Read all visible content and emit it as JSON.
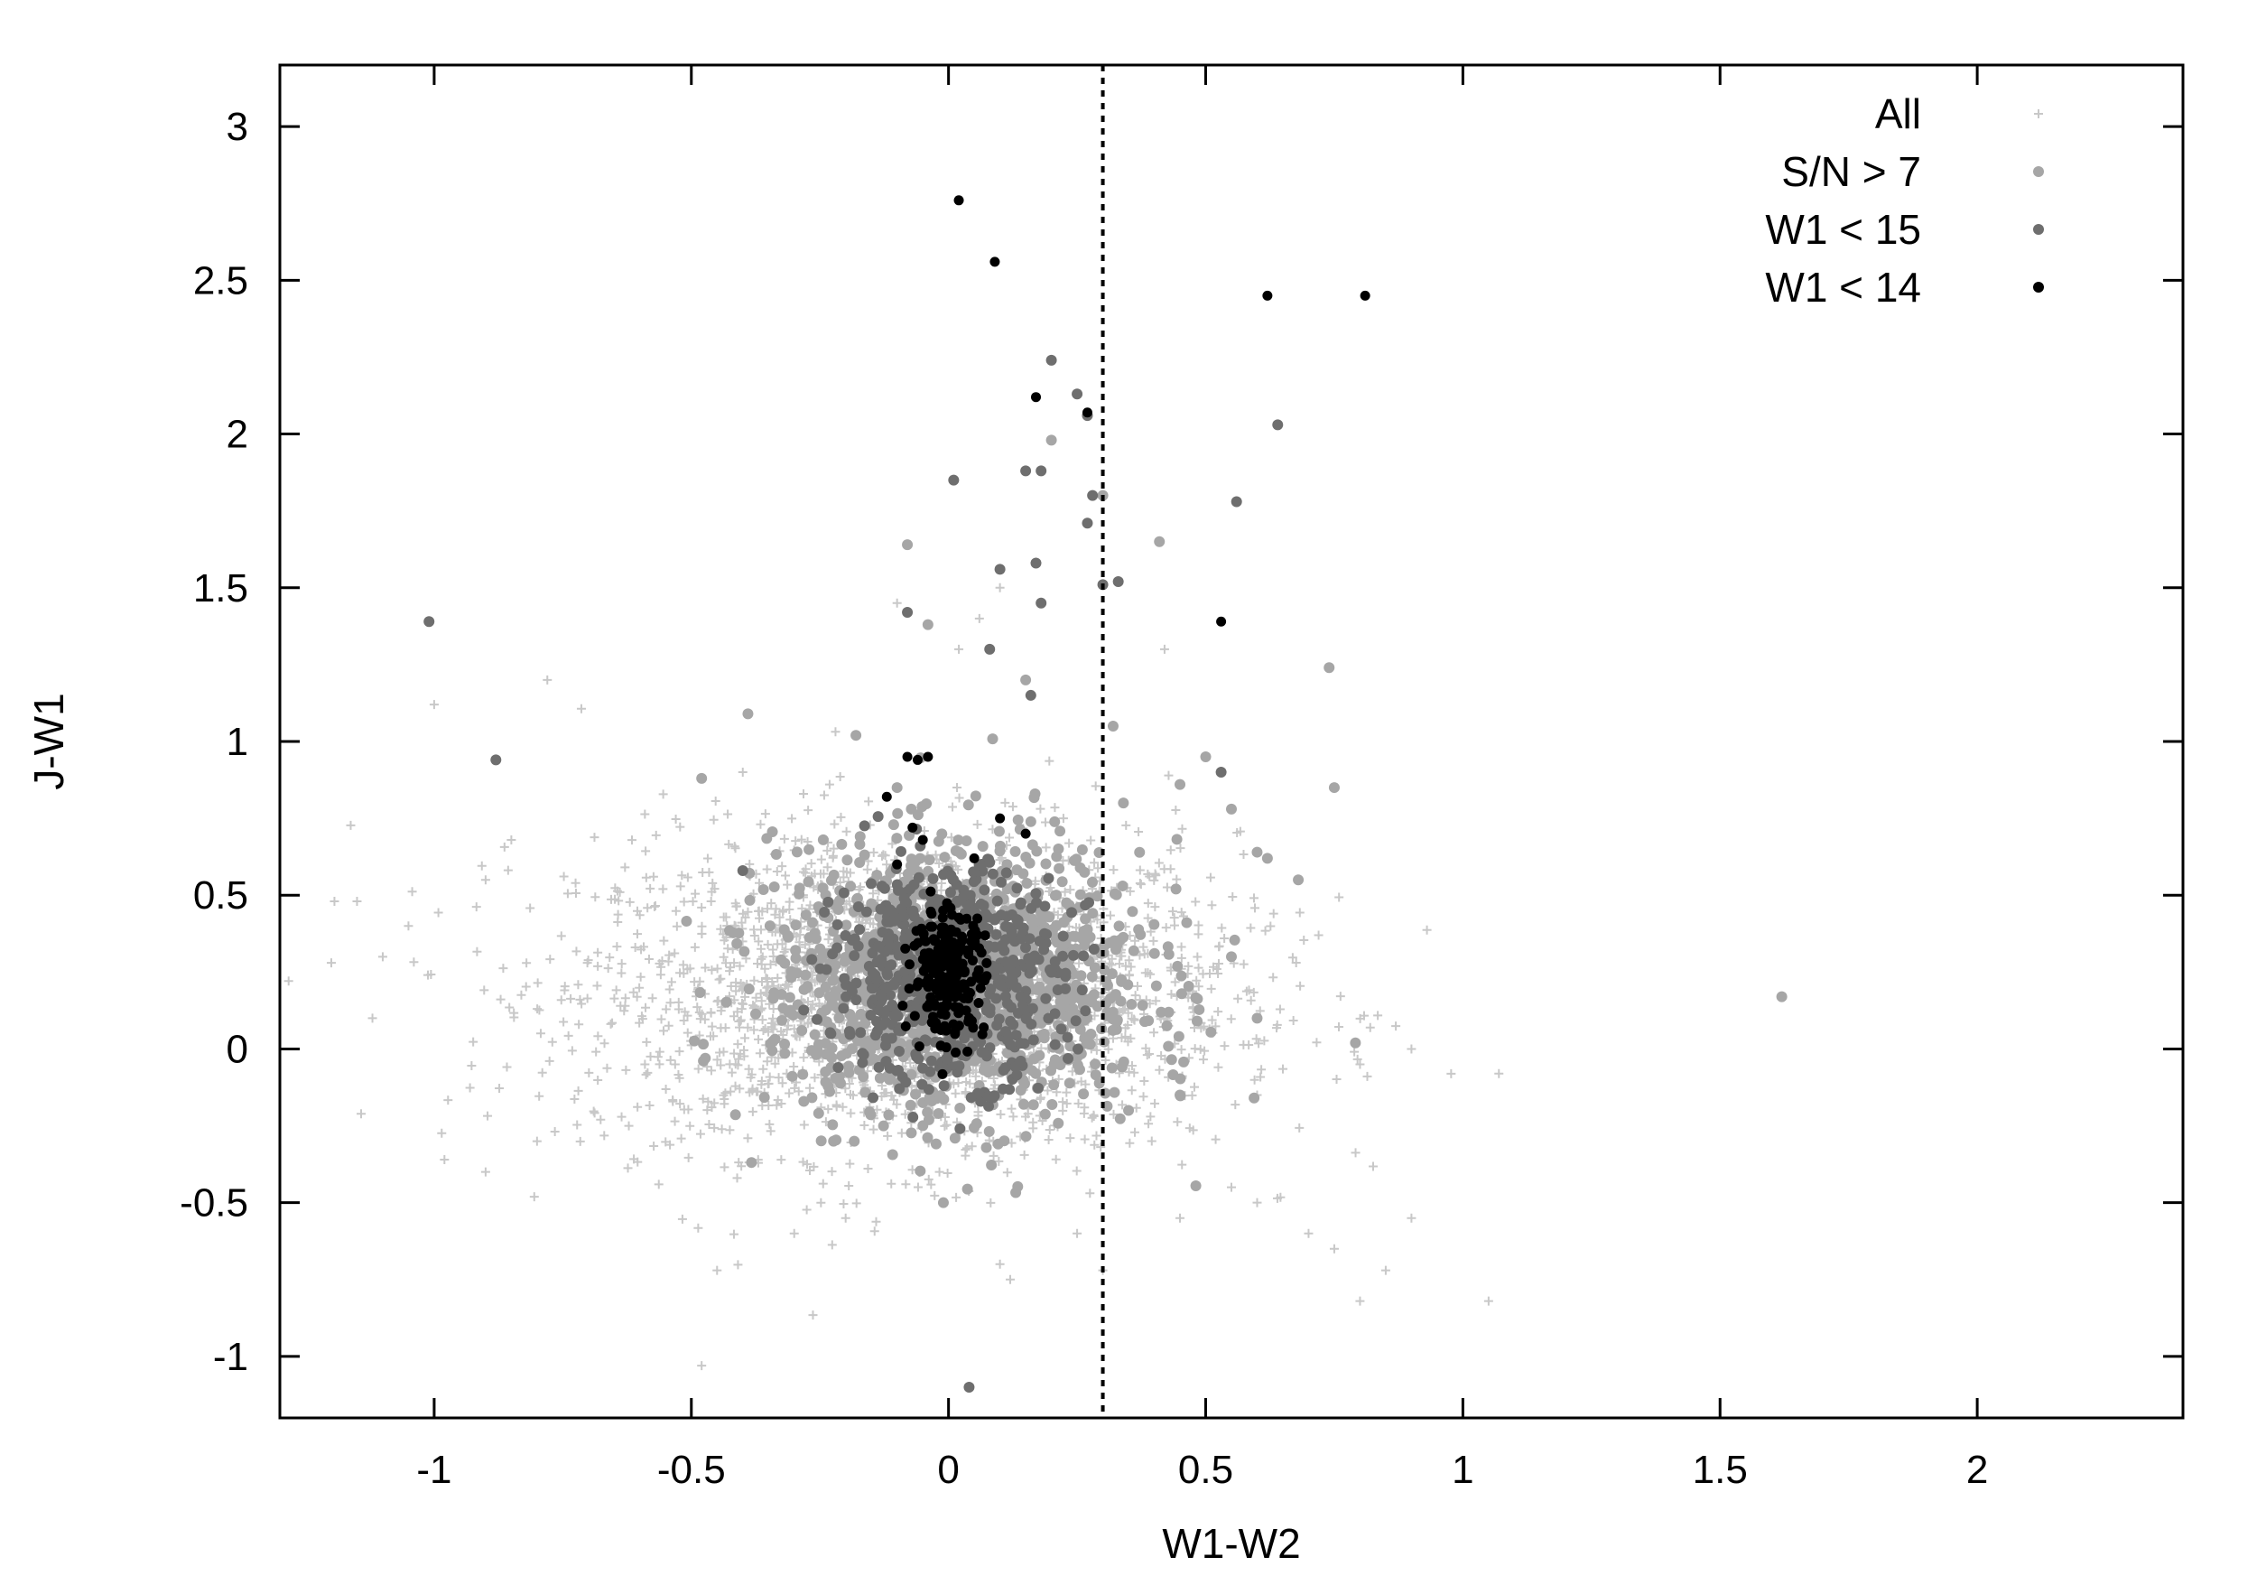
{
  "chart_data": {
    "type": "scatter",
    "title": "",
    "xlabel": "W1-W2",
    "ylabel": "J-W1",
    "xlim": [
      -1.3,
      2.4
    ],
    "ylim": [
      -1.2,
      3.2
    ],
    "xticks": [
      -1,
      -0.5,
      0,
      0.5,
      1,
      1.5,
      2
    ],
    "xtick_labels": [
      "-1",
      "-0.5",
      "0",
      "0.5",
      "1",
      "1.5",
      "2"
    ],
    "yticks": [
      -1,
      -0.5,
      0,
      0.5,
      1,
      1.5,
      2,
      2.5,
      3
    ],
    "ytick_labels": [
      "-1",
      "-0.5",
      "0",
      "0.5",
      "1",
      "1.5",
      "2",
      "2.5",
      "3"
    ],
    "grid": false,
    "legend_position": "top-right",
    "reference_line": {
      "x": 0.3,
      "style": "dotted"
    },
    "series": [
      {
        "name": "All",
        "marker": "plus",
        "color": "#c8c8c8",
        "cloud": {
          "center": [
            -0.08,
            0.18
          ],
          "spread": [
            0.32,
            0.26
          ],
          "count": 2200
        },
        "points": [
          [
            -1.2,
            0.28
          ],
          [
            -1.15,
            0.48
          ],
          [
            -1.05,
            0.4
          ],
          [
            -1.0,
            1.12
          ],
          [
            -0.78,
            1.2
          ],
          [
            -0.85,
            0.68
          ],
          [
            -0.9,
            0.55
          ],
          [
            -1.1,
            0.3
          ],
          [
            -1.12,
            0.1
          ],
          [
            -0.98,
            -0.36
          ],
          [
            -0.9,
            -0.4
          ],
          [
            -0.8,
            -0.3
          ],
          [
            -0.48,
            -1.03
          ],
          [
            -0.45,
            -0.72
          ],
          [
            -0.3,
            -0.6
          ],
          [
            -0.2,
            -0.55
          ],
          [
            0.1,
            -0.7
          ],
          [
            0.12,
            -0.75
          ],
          [
            0.3,
            -0.72
          ],
          [
            0.25,
            -0.6
          ],
          [
            0.45,
            -0.55
          ],
          [
            0.55,
            -0.45
          ],
          [
            0.6,
            -0.5
          ],
          [
            0.7,
            -0.6
          ],
          [
            0.75,
            -0.65
          ],
          [
            0.8,
            -0.82
          ],
          [
            0.85,
            -0.72
          ],
          [
            0.9,
            -0.55
          ],
          [
            1.05,
            -0.82
          ],
          [
            1.07,
            -0.08
          ],
          [
            0.9,
            0.0
          ],
          [
            0.8,
            -0.05
          ],
          [
            0.6,
            -0.15
          ],
          [
            0.42,
            1.3
          ],
          [
            0.1,
            1.5
          ],
          [
            0.02,
            1.3
          ],
          [
            -0.4,
            0.9
          ],
          [
            -0.1,
            1.45
          ],
          [
            0.06,
            1.4
          ]
        ]
      },
      {
        "name": "S/N > 7",
        "marker": "circle",
        "color": "#a6a6a6",
        "cloud": {
          "center": [
            0.02,
            0.22
          ],
          "spread": [
            0.18,
            0.22
          ],
          "count": 1300
        },
        "points": [
          [
            1.62,
            0.17
          ],
          [
            0.75,
            0.85
          ],
          [
            0.74,
            1.24
          ],
          [
            0.68,
            0.55
          ],
          [
            0.62,
            0.62
          ],
          [
            0.6,
            0.64
          ],
          [
            0.55,
            0.78
          ],
          [
            0.5,
            0.95
          ],
          [
            0.45,
            0.86
          ],
          [
            0.41,
            1.65
          ],
          [
            0.34,
            0.8
          ],
          [
            0.32,
            1.05
          ],
          [
            -0.04,
            1.38
          ],
          [
            -0.08,
            1.64
          ],
          [
            -0.18,
            1.02
          ],
          [
            -0.48,
            0.88
          ],
          [
            -0.39,
            1.09
          ],
          [
            -0.1,
            0.85
          ],
          [
            0.2,
            1.98
          ],
          [
            0.3,
            1.8
          ],
          [
            0.15,
            1.2
          ],
          [
            -0.01,
            -0.5
          ],
          [
            0.35,
            -0.2
          ],
          [
            0.45,
            -0.15
          ],
          [
            0.55,
            0.3
          ],
          [
            0.6,
            0.1
          ]
        ]
      },
      {
        "name": "W1 < 15",
        "marker": "circle",
        "color": "#6e6e6e",
        "cloud": {
          "center": [
            0.0,
            0.24
          ],
          "spread": [
            0.11,
            0.17
          ],
          "count": 650
        },
        "points": [
          [
            -1.01,
            1.39
          ],
          [
            -0.88,
            0.94
          ],
          [
            0.2,
            2.24
          ],
          [
            0.25,
            2.13
          ],
          [
            0.28,
            1.8
          ],
          [
            0.27,
            1.71
          ],
          [
            0.27,
            2.06
          ],
          [
            0.01,
            1.85
          ],
          [
            0.15,
            1.88
          ],
          [
            0.18,
            1.88
          ],
          [
            0.17,
            1.58
          ],
          [
            0.18,
            1.45
          ],
          [
            0.3,
            1.51
          ],
          [
            0.33,
            1.52
          ],
          [
            0.56,
            1.78
          ],
          [
            0.64,
            2.03
          ],
          [
            0.53,
            0.9
          ],
          [
            0.1,
            1.56
          ],
          [
            -0.08,
            1.42
          ],
          [
            0.04,
            -1.1
          ],
          [
            -0.4,
            0.58
          ],
          [
            0.16,
            1.15
          ],
          [
            0.08,
            1.3
          ]
        ]
      },
      {
        "name": "W1 < 14",
        "marker": "circle",
        "color": "#000000",
        "cloud": {
          "center": [
            0.0,
            0.25
          ],
          "spread": [
            0.035,
            0.1
          ],
          "count": 230
        },
        "points": [
          [
            0.02,
            2.76
          ],
          [
            0.09,
            2.56
          ],
          [
            0.62,
            2.45
          ],
          [
            0.81,
            2.45
          ],
          [
            0.17,
            2.12
          ],
          [
            0.27,
            2.07
          ],
          [
            0.53,
            1.39
          ],
          [
            -0.08,
            0.95
          ],
          [
            -0.06,
            0.94
          ],
          [
            -0.04,
            0.95
          ],
          [
            -0.12,
            0.82
          ],
          [
            -0.07,
            0.72
          ],
          [
            -0.05,
            0.68
          ],
          [
            0.15,
            0.7
          ],
          [
            0.1,
            0.75
          ],
          [
            -0.1,
            0.6
          ],
          [
            0.05,
            0.62
          ]
        ]
      }
    ]
  }
}
